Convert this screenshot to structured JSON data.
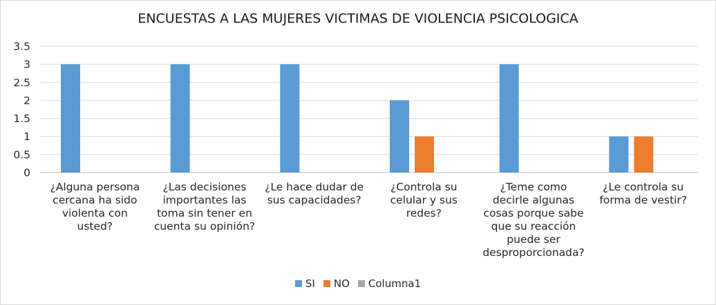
{
  "chart_data": {
    "type": "bar",
    "title": "ENCUESTAS A LAS MUJERES VICTIMAS DE VIOLENCIA PSICOLOGICA",
    "categories": [
      "¿Alguna persona cercana ha sido violenta con usted?",
      "¿Las decisiones importantes las toma sin tener en cuenta su opinión?",
      "¿Le hace dudar de sus capacidades?",
      "¿Controla su celular y sus redes?",
      "¿Teme como decirle algunas cosas porque sabe que su reacción puede ser desproporcionada?",
      "¿Le controla su forma de vestir?"
    ],
    "category_lines": [
      [
        "¿Alguna persona",
        "cercana ha sido",
        "violenta con",
        "usted?"
      ],
      [
        "¿Las decisiones",
        "importantes las",
        "toma sin tener en",
        "cuenta su opinión?"
      ],
      [
        "¿Le hace dudar de",
        "sus capacidades?"
      ],
      [
        "¿Controla su",
        "celular y sus",
        "redes?"
      ],
      [
        "¿Teme como",
        "decirle algunas",
        "cosas porque sabe",
        "que su reacción",
        "puede ser",
        "desproporcionada?"
      ],
      [
        "¿Le controla su",
        "forma de vestir?"
      ]
    ],
    "series": [
      {
        "name": "SI",
        "values": [
          3,
          3,
          3,
          2,
          3,
          1
        ],
        "color": "#5b9bd5"
      },
      {
        "name": "NO",
        "values": [
          null,
          null,
          null,
          1,
          null,
          1
        ],
        "color": "#ed7d31"
      },
      {
        "name": "Columna1",
        "values": [
          null,
          null,
          null,
          null,
          null,
          null
        ],
        "color": "#a5a5a5"
      }
    ],
    "ylim": [
      0,
      3.5
    ],
    "yticks": [
      "0",
      "0.5",
      "1",
      "1.5",
      "2",
      "2.5",
      "3",
      "3.5"
    ],
    "grid": true,
    "legend_position": "bottom"
  }
}
